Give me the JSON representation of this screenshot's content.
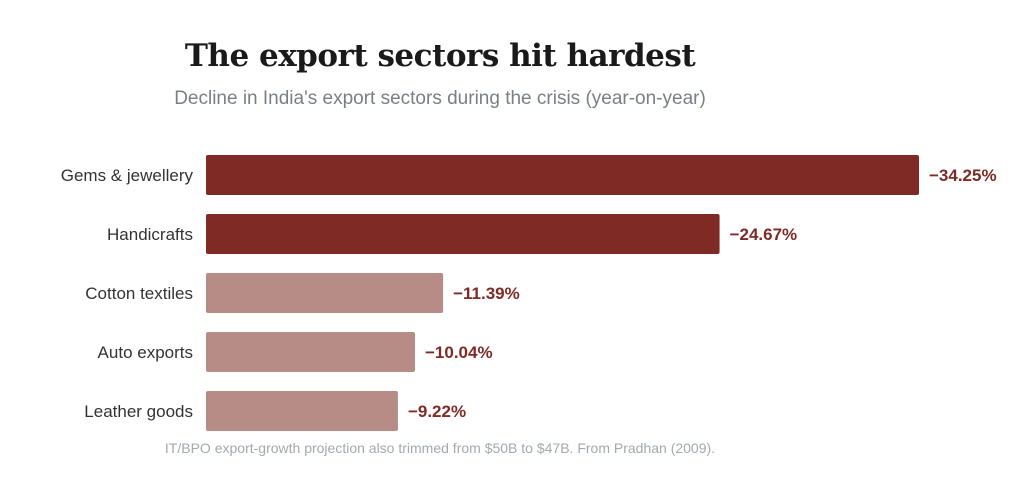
{
  "chart_data": {
    "type": "bar",
    "orientation": "horizontal",
    "title": "The export sectors hit hardest",
    "subtitle": "Decline in India's export sectors during the crisis (year-on-year)",
    "categories": [
      "Gems & jewellery",
      "Handicrafts",
      "Cotton textiles",
      "Auto exports",
      "Leather goods"
    ],
    "values": [
      -34.25,
      -24.67,
      -11.39,
      -10.04,
      -9.22
    ],
    "value_labels": [
      "−34.25%",
      "−24.67%",
      "−11.39%",
      "−10.04%",
      "−9.22%"
    ],
    "highlighted": [
      true,
      true,
      false,
      false,
      false
    ],
    "colors": {
      "highlight": "#7f2a24",
      "muted": "#b78c87",
      "label": "#7f2a24"
    },
    "xlim": [
      0,
      34.25
    ],
    "grid": false,
    "legend": "none"
  },
  "footnote": "IT/BPO export-growth projection also trimmed from $50B to $47B. From Pradhan (2009)."
}
